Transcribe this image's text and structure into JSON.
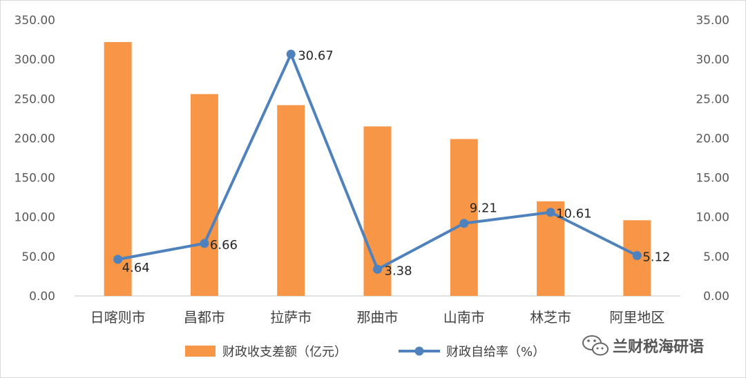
{
  "chart_data": {
    "type": "bar+line",
    "categories": [
      "日喀则市",
      "昌都市",
      "拉萨市",
      "那曲市",
      "山南市",
      "林芝市",
      "阿里地区"
    ],
    "series": [
      {
        "name": "财政收支差额（亿元）",
        "type": "bar",
        "axis": "left",
        "color": "#F79646",
        "values": [
          322,
          256,
          242,
          215,
          199,
          120,
          96
        ]
      },
      {
        "name": "财政自给率（%）",
        "type": "line",
        "axis": "right",
        "color": "#4F81BD",
        "values": [
          4.64,
          6.66,
          30.67,
          3.38,
          9.21,
          10.61,
          5.12
        ],
        "labels": [
          "4.64",
          "6.66",
          "30.67",
          "3.38",
          "9.21",
          "10.61",
          "5.12"
        ]
      }
    ],
    "y_left": {
      "range": [
        0,
        350
      ],
      "ticks": [
        "0.00",
        "50.00",
        "100.00",
        "150.00",
        "200.00",
        "250.00",
        "300.00",
        "350.00"
      ]
    },
    "y_right": {
      "range": [
        0,
        35
      ],
      "ticks": [
        "0.00",
        "5.00",
        "10.00",
        "15.00",
        "20.00",
        "25.00",
        "30.00",
        "35.00"
      ]
    },
    "grid": false,
    "legend_position": "bottom"
  },
  "legend": {
    "bar_label": "财政收支差额（亿元）",
    "line_label": "财政自给率（%）"
  },
  "watermark": {
    "text": "兰财税海研语",
    "icon": "wechat-icon"
  }
}
